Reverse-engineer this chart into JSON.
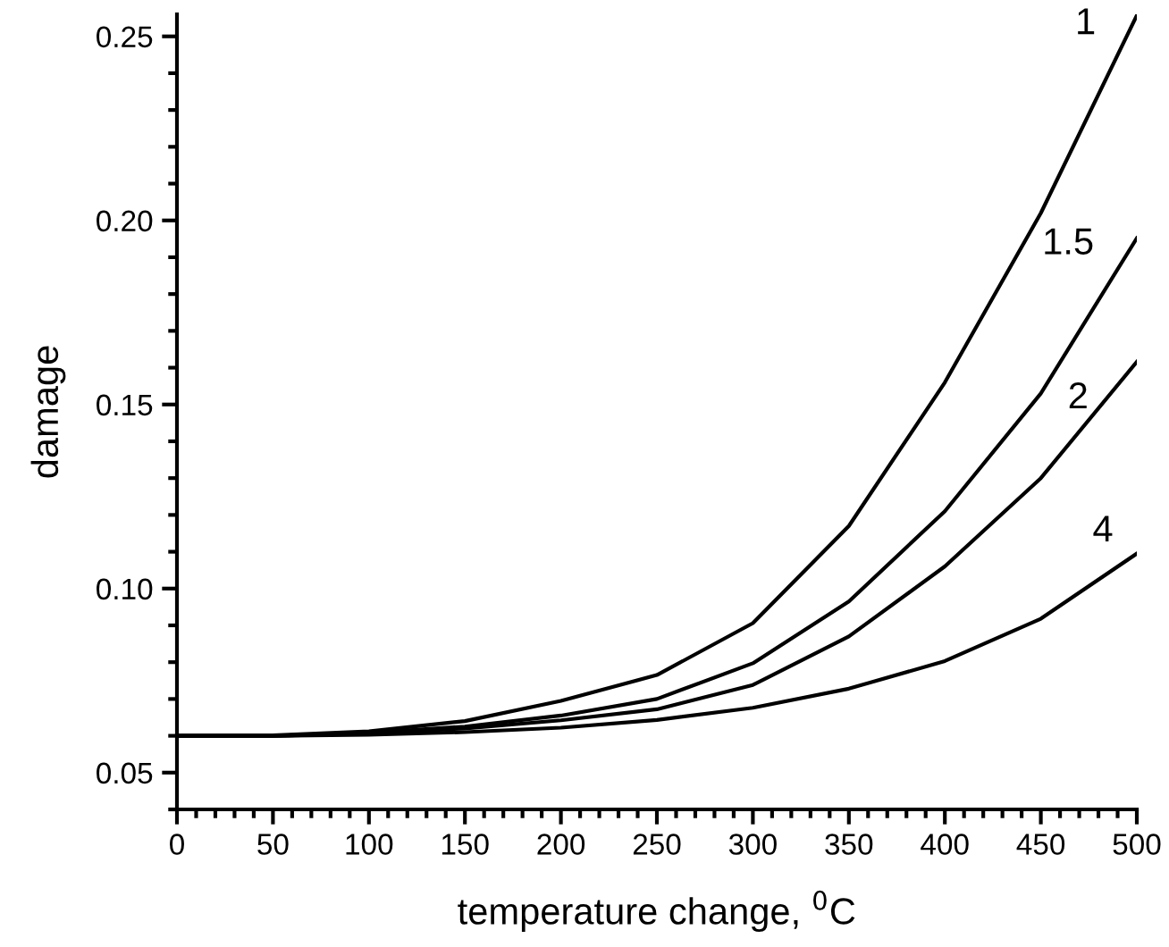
{
  "chart_data": {
    "type": "line",
    "xlabel": "temperature change, $^{0}$C",
    "ylabel": "damage",
    "x": [
      0,
      50,
      100,
      150,
      200,
      250,
      300,
      350,
      400,
      450,
      500
    ],
    "series": [
      {
        "name": "1",
        "color": "#000000",
        "values": [
          0.06,
          0.0601,
          0.0612,
          0.064,
          0.0695,
          0.0765,
          0.0906,
          0.117,
          0.156,
          0.202,
          0.2557
        ]
      },
      {
        "name": "1.5",
        "color": "#000000",
        "values": [
          0.06,
          0.06,
          0.0608,
          0.0625,
          0.0655,
          0.07,
          0.0797,
          0.0965,
          0.121,
          0.153,
          0.1952
        ]
      },
      {
        "name": "2",
        "color": "#000000",
        "values": [
          0.06,
          0.06,
          0.0606,
          0.062,
          0.0642,
          0.0672,
          0.0738,
          0.087,
          0.106,
          0.13,
          0.1616
        ]
      },
      {
        "name": "4",
        "color": "#000000",
        "values": [
          0.06,
          0.06,
          0.0603,
          0.061,
          0.0622,
          0.0643,
          0.0676,
          0.0728,
          0.0803,
          0.0918,
          0.1095
        ]
      }
    ],
    "xlim": [
      0,
      500
    ],
    "xticks": [
      0,
      50,
      100,
      150,
      200,
      250,
      300,
      350,
      400,
      450,
      500
    ],
    "ylim": [
      0.04,
      0.256
    ],
    "yticks": [
      {
        "value": 0.05,
        "label": "0.05"
      },
      {
        "value": 0.1,
        "label": "0.10"
      },
      {
        "value": 0.15,
        "label": "0.15"
      },
      {
        "value": 0.2,
        "label": "0.20"
      },
      {
        "value": 0.25,
        "label": "0.25"
      }
    ],
    "grid": false,
    "legend": false,
    "marker": "none",
    "line_style": "solid"
  }
}
